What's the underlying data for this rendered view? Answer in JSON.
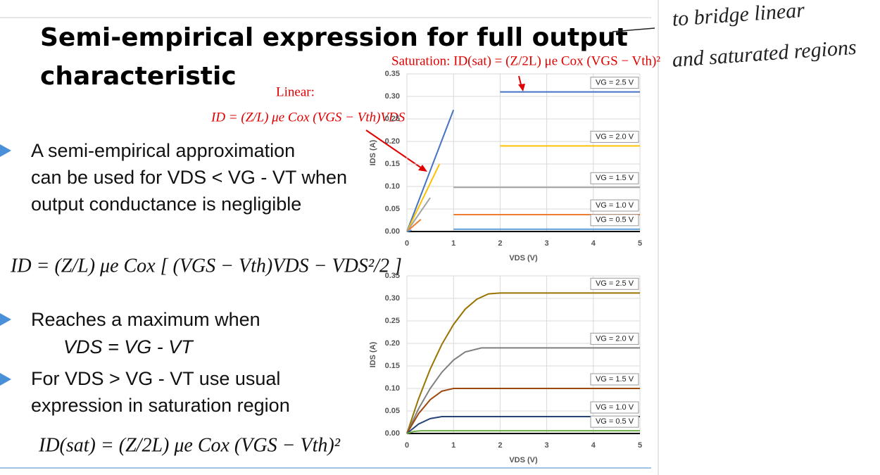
{
  "slide": {
    "title": [
      "Semi-empirical expression for full output",
      "characteristic"
    ],
    "bullets": [
      [
        "A semi-empirical approximation",
        "can be used for VDS < VG - VT when",
        "output conductance is negligible"
      ],
      [
        "Reaches a maximum when",
        "VDS = VG - VT"
      ],
      [
        "For VDS > VG - VT  use usual",
        "expression in saturation region"
      ]
    ],
    "equations": [
      "ID = (Z/L) μe Cox [ (VGS − Vth)VDS − VDS²/2 ]",
      "ID(sat) = (Z/2L) μe Cox (VGS − Vth)²"
    ],
    "handwriting": [
      "to bridge linear",
      "and saturated regions"
    ]
  },
  "chart_data": [
    {
      "type": "line",
      "xlabel": "VDS (V)",
      "ylabel": "IDS (A)",
      "annotations": [
        "Saturation: ID(sat) = (Z/2L) μe Cox (VGS − Vth)²",
        "Linear:",
        "ID = (Z/L) μe Cox (VGS − Vth)VDS"
      ],
      "xlim": [
        0,
        5
      ],
      "ylim": [
        0,
        0.35
      ],
      "xticks": [
        0,
        1,
        2,
        3,
        4,
        5
      ],
      "yticks": [
        {
          "value": 0,
          "label": "0.00"
        },
        {
          "value": 0.05,
          "label": "0.05"
        },
        {
          "value": 0.1,
          "label": "0.10"
        },
        {
          "value": 0.15,
          "label": "0.15"
        },
        {
          "value": 0.2,
          "label": "0.20"
        },
        {
          "value": 0.25,
          "label": "0.25"
        },
        {
          "value": 0.3,
          "label": "0.30"
        },
        {
          "value": 0.35,
          "label": "0.35"
        }
      ],
      "grid": true,
      "series": [
        {
          "name": "VG = 2.5 V",
          "color": "#4472c4",
          "x": [
            0,
            1,
            null,
            2,
            5
          ],
          "values": [
            0,
            0.27,
            null,
            0.31,
            0.31
          ]
        },
        {
          "name": "VG = 2.0 V",
          "color": "#ffc000",
          "x": [
            0,
            0.7,
            null,
            2,
            5
          ],
          "values": [
            0,
            0.15,
            null,
            0.19,
            0.19
          ]
        },
        {
          "name": "VG = 1.5 V",
          "color": "#a5a5a5",
          "x": [
            0,
            0.5,
            null,
            1,
            5
          ],
          "values": [
            0,
            0.075,
            null,
            0.098,
            0.098
          ]
        },
        {
          "name": "VG = 1.0 V",
          "color": "#ed7d31",
          "x": [
            0,
            0.3,
            null,
            1,
            5
          ],
          "values": [
            0,
            0.027,
            null,
            0.0375,
            0.0375
          ]
        },
        {
          "name": "VG = 0.5 V",
          "color": "#5b9bd5",
          "x": [
            0,
            0.1,
            null,
            1,
            5
          ],
          "values": [
            0,
            0.003,
            null,
            0.005,
            0.005
          ]
        }
      ]
    },
    {
      "type": "line",
      "xlabel": "VDS (V)",
      "ylabel": "IDS (A)",
      "xlim": [
        0,
        5
      ],
      "ylim": [
        0,
        0.35
      ],
      "xticks": [
        0,
        1,
        2,
        3,
        4,
        5
      ],
      "yticks": [
        {
          "value": 0,
          "label": "0.00"
        },
        {
          "value": 0.05,
          "label": "0.05"
        },
        {
          "value": 0.1,
          "label": "0.10"
        },
        {
          "value": 0.15,
          "label": "0.15"
        },
        {
          "value": 0.2,
          "label": "0.20"
        },
        {
          "value": 0.25,
          "label": "0.25"
        },
        {
          "value": 0.3,
          "label": "0.30"
        },
        {
          "value": 0.35,
          "label": "0.35"
        }
      ],
      "grid": true,
      "series": [
        {
          "name": "VG = 2.5 V",
          "color": "#997300",
          "x": [
            0,
            0.25,
            0.5,
            0.75,
            1,
            1.25,
            1.5,
            1.75,
            2,
            5
          ],
          "values": [
            0,
            0.077,
            0.143,
            0.198,
            0.242,
            0.276,
            0.298,
            0.31,
            0.312,
            0.312
          ]
        },
        {
          "name": "VG = 2.0 V",
          "color": "#7f7f7f",
          "x": [
            0,
            0.25,
            0.5,
            0.75,
            1,
            1.25,
            1.6,
            5
          ],
          "values": [
            0,
            0.055,
            0.1,
            0.136,
            0.163,
            0.181,
            0.19,
            0.19
          ]
        },
        {
          "name": "VG = 1.5 V",
          "color": "#9e480e",
          "x": [
            0,
            0.25,
            0.5,
            0.75,
            1,
            5
          ],
          "values": [
            0,
            0.044,
            0.075,
            0.094,
            0.1,
            0.1
          ]
        },
        {
          "name": "VG = 1.0 V",
          "color": "#264478",
          "x": [
            0,
            0.25,
            0.5,
            0.75,
            5
          ],
          "values": [
            0,
            0.021,
            0.033,
            0.0375,
            0.0375
          ]
        },
        {
          "name": "VG = 0.5 V",
          "color": "#70ad47",
          "x": [
            0,
            0.15,
            0.3,
            5
          ],
          "values": [
            0,
            0.0045,
            0.006,
            0.006
          ]
        }
      ]
    }
  ]
}
